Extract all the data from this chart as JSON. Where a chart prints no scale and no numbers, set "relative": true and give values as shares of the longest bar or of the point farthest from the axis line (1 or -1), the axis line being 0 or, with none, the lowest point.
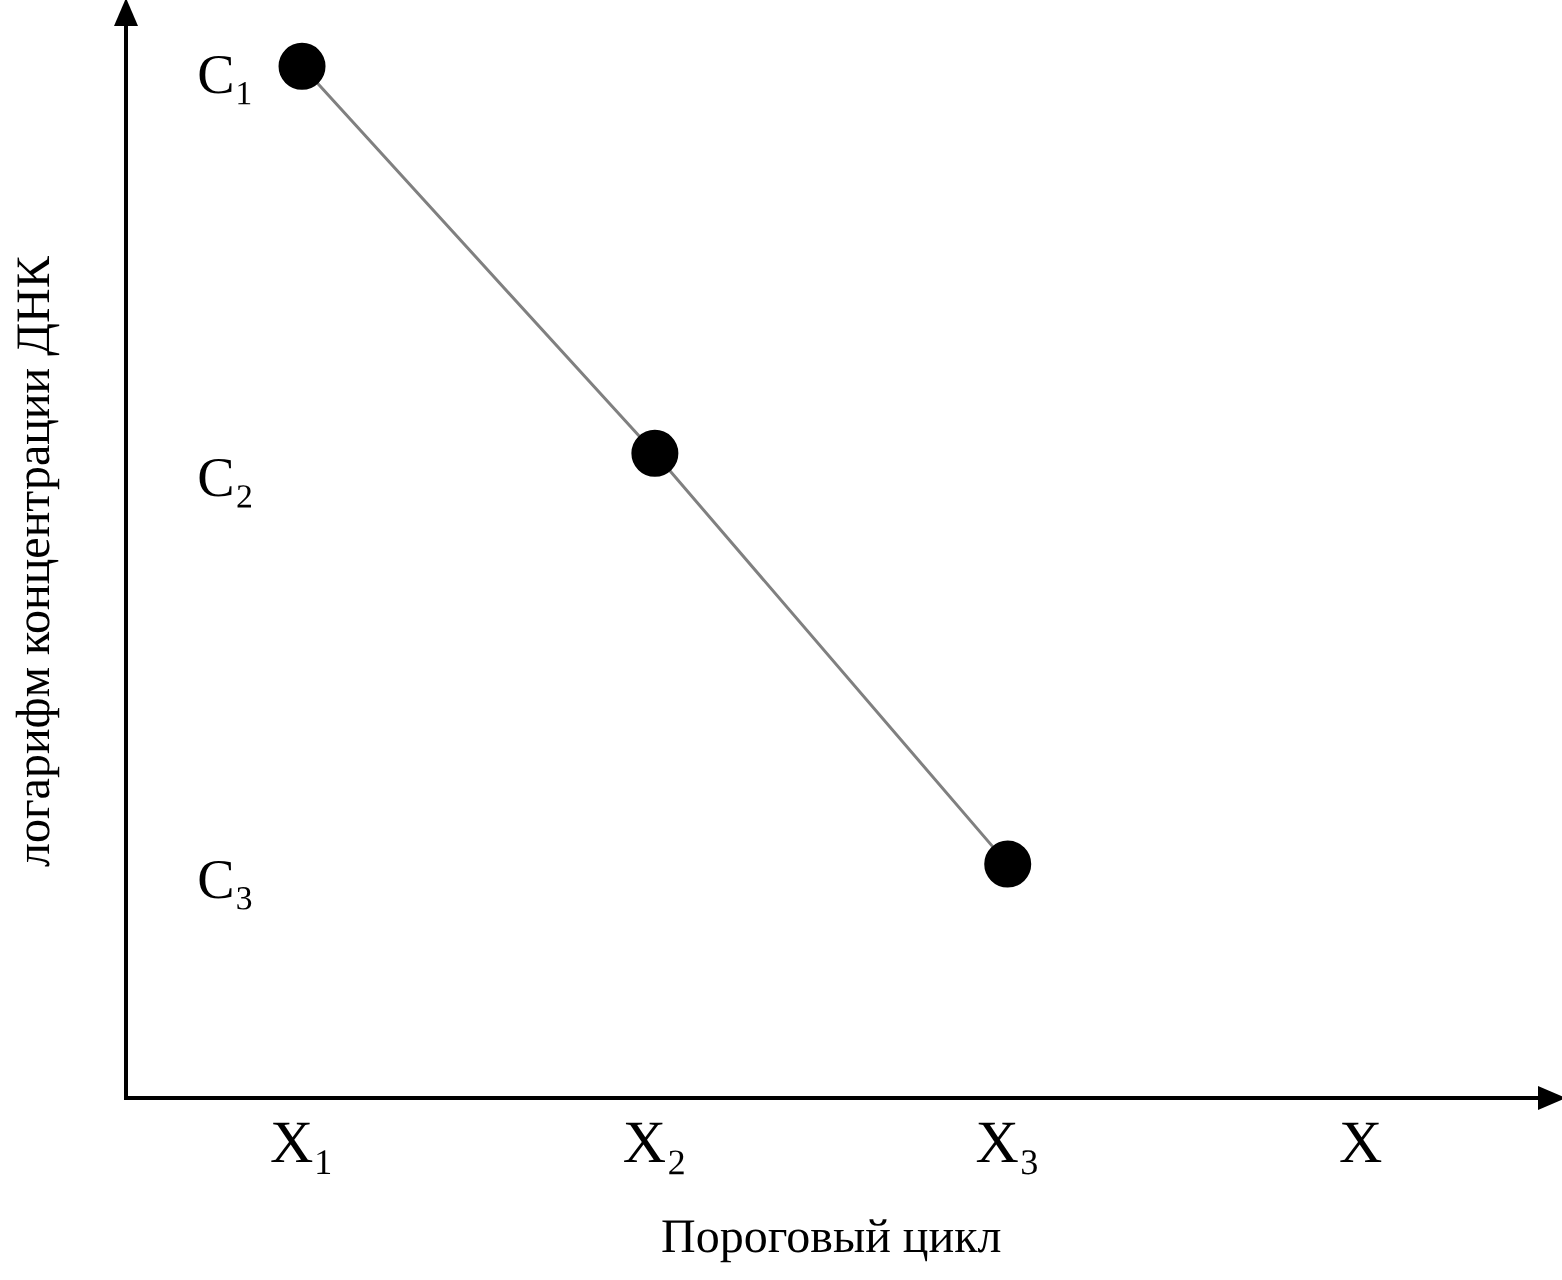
{
  "chart_data": {
    "type": "line",
    "relative": true,
    "categories": [
      "X₁",
      "X₂",
      "X₃",
      "X"
    ],
    "series": [
      {
        "color": "#808080",
        "values": [
          1,
          0.625,
          0.227,
          null
        ]
      }
    ],
    "marker": "circle",
    "line_style": "solid",
    "grid": false,
    "legend": false,
    "xlabel": "Пороговый цикл",
    "ylabel": "логарифм концентрации ДНК",
    "annotations": [
      "C₁",
      "C₂",
      "C₃"
    ]
  }
}
